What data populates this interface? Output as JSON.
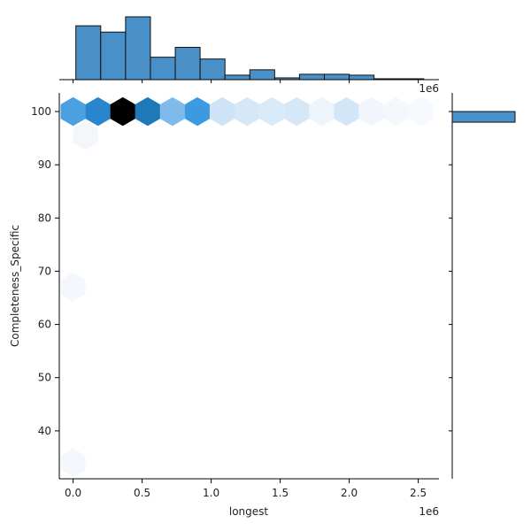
{
  "chart_data": {
    "type": "hexbin-jointplot",
    "xlabel": "longest",
    "ylabel": "Completeness_Specific",
    "x_exponent_label": "1e6",
    "marginal_exponent_label": "1e6",
    "x_range": [
      -0.1,
      2.65
    ],
    "y_range": [
      31,
      103.5
    ],
    "x_ticks": [
      {
        "value": 0.0,
        "label": "0.0"
      },
      {
        "value": 0.5,
        "label": "0.5"
      },
      {
        "value": 1.0,
        "label": "1.0"
      },
      {
        "value": 1.5,
        "label": "1.5"
      },
      {
        "value": 2.0,
        "label": "2.0"
      },
      {
        "value": 2.5,
        "label": "2.5"
      }
    ],
    "y_ticks": [
      {
        "value": 40,
        "label": "40"
      },
      {
        "value": 50,
        "label": "50"
      },
      {
        "value": 60,
        "label": "60"
      },
      {
        "value": 70,
        "label": "70"
      },
      {
        "value": 80,
        "label": "80"
      },
      {
        "value": 90,
        "label": "90"
      },
      {
        "value": 100,
        "label": "100"
      }
    ],
    "hexbins": [
      {
        "x": 0.0,
        "y": 100,
        "color": "#4aa0e0"
      },
      {
        "x": 0.18,
        "y": 100,
        "color": "#2a86cc"
      },
      {
        "x": 0.36,
        "y": 100,
        "color": "#000000"
      },
      {
        "x": 0.54,
        "y": 100,
        "color": "#1f78b8"
      },
      {
        "x": 0.72,
        "y": 100,
        "color": "#7fbbea"
      },
      {
        "x": 0.9,
        "y": 100,
        "color": "#3e9ae0"
      },
      {
        "x": 1.08,
        "y": 100,
        "color": "#cfe3f6"
      },
      {
        "x": 1.26,
        "y": 100,
        "color": "#d6e8f8"
      },
      {
        "x": 1.44,
        "y": 100,
        "color": "#d9eaf8"
      },
      {
        "x": 1.62,
        "y": 100,
        "color": "#d6e8f8"
      },
      {
        "x": 1.8,
        "y": 100,
        "color": "#eef4fb"
      },
      {
        "x": 1.98,
        "y": 100,
        "color": "#d3e6f7"
      },
      {
        "x": 2.16,
        "y": 100,
        "color": "#f1f6fc"
      },
      {
        "x": 2.34,
        "y": 100,
        "color": "#f4f8fd"
      },
      {
        "x": 2.52,
        "y": 100,
        "color": "#f6f9fd"
      },
      {
        "x": 0.09,
        "y": 95.5,
        "color": "#f3f7fc"
      },
      {
        "x": 0.0,
        "y": 67,
        "color": "#f4f8fd"
      },
      {
        "x": 0.0,
        "y": 34,
        "color": "#f4f8fd"
      }
    ],
    "top_histogram": {
      "bins": [
        {
          "x0": 0.02,
          "x1": 0.2,
          "count": 60
        },
        {
          "x0": 0.2,
          "x1": 0.38,
          "count": 53
        },
        {
          "x0": 0.38,
          "x1": 0.56,
          "count": 70
        },
        {
          "x0": 0.56,
          "x1": 0.74,
          "count": 25
        },
        {
          "x0": 0.74,
          "x1": 0.92,
          "count": 36
        },
        {
          "x0": 0.92,
          "x1": 1.1,
          "count": 23
        },
        {
          "x0": 1.1,
          "x1": 1.28,
          "count": 5
        },
        {
          "x0": 1.28,
          "x1": 1.46,
          "count": 11
        },
        {
          "x0": 1.46,
          "x1": 1.64,
          "count": 2
        },
        {
          "x0": 1.64,
          "x1": 1.82,
          "count": 6
        },
        {
          "x0": 1.82,
          "x1": 2.0,
          "count": 6
        },
        {
          "x0": 2.0,
          "x1": 2.18,
          "count": 5
        },
        {
          "x0": 2.18,
          "x1": 2.36,
          "count": 1
        },
        {
          "x0": 2.36,
          "x1": 2.54,
          "count": 1
        }
      ],
      "max_count": 70
    },
    "right_histogram": {
      "bins": [
        {
          "y0": 98,
          "y1": 100,
          "count": 300
        }
      ],
      "max_count": 300
    }
  }
}
